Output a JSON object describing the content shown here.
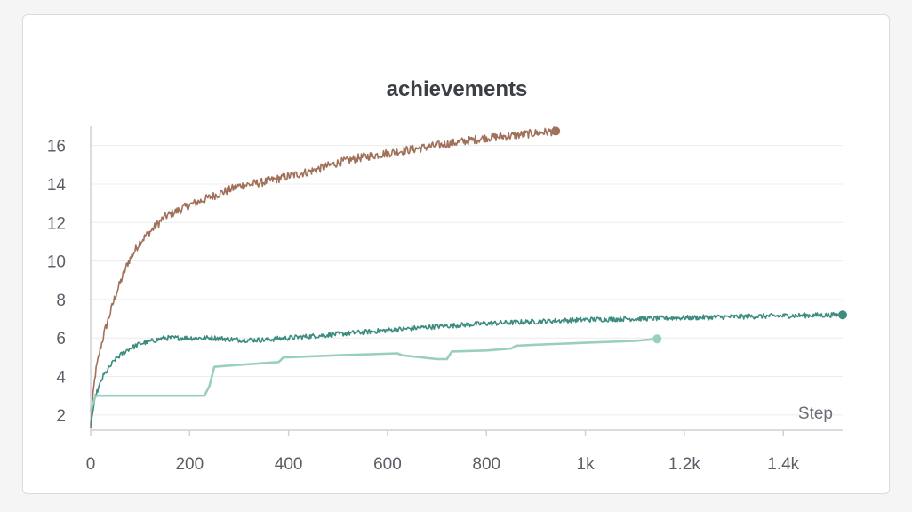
{
  "chart_data": {
    "type": "line",
    "title": "achievements",
    "xlabel": "Step",
    "ylabel": "",
    "xlim": [
      0,
      1520
    ],
    "ylim": [
      1.3,
      17.0
    ],
    "grid": true,
    "x_ticks": [
      {
        "value": 0,
        "label": "0"
      },
      {
        "value": 200,
        "label": "200"
      },
      {
        "value": 400,
        "label": "400"
      },
      {
        "value": 600,
        "label": "600"
      },
      {
        "value": 800,
        "label": "800"
      },
      {
        "value": 1000,
        "label": "1k"
      },
      {
        "value": 1200,
        "label": "1.2k"
      },
      {
        "value": 1400,
        "label": "1.4k"
      }
    ],
    "y_ticks": [
      {
        "value": 2,
        "label": "2"
      },
      {
        "value": 4,
        "label": "4"
      },
      {
        "value": 6,
        "label": "6"
      },
      {
        "value": 8,
        "label": "8"
      },
      {
        "value": 10,
        "label": "10"
      },
      {
        "value": 12,
        "label": "12"
      },
      {
        "value": 14,
        "label": "14"
      },
      {
        "value": 16,
        "label": "16"
      }
    ],
    "series": [
      {
        "color": "#a0705a",
        "noise": 0.22,
        "x": [
          0,
          5,
          10,
          20,
          30,
          50,
          75,
          100,
          150,
          200,
          250,
          300,
          350,
          400,
          450,
          500,
          550,
          600,
          650,
          700,
          750,
          800,
          850,
          900,
          940
        ],
        "y": [
          1.3,
          3.2,
          4.2,
          5.5,
          6.5,
          8.2,
          9.9,
          11.0,
          12.3,
          12.9,
          13.4,
          13.9,
          14.1,
          14.4,
          14.7,
          15.1,
          15.4,
          15.6,
          15.8,
          16.0,
          16.2,
          16.4,
          16.5,
          16.65,
          16.75
        ]
      },
      {
        "color": "#3d8c80",
        "noise": 0.13,
        "x": [
          0,
          10,
          25,
          50,
          75,
          100,
          150,
          200,
          250,
          300,
          350,
          400,
          450,
          500,
          600,
          700,
          800,
          900,
          1000,
          1100,
          1200,
          1300,
          1400,
          1520
        ],
        "y": [
          1.5,
          3.0,
          4.0,
          4.9,
          5.4,
          5.7,
          6.0,
          6.0,
          6.0,
          5.9,
          5.9,
          6.0,
          6.1,
          6.2,
          6.4,
          6.6,
          6.75,
          6.85,
          6.95,
          7.0,
          7.05,
          7.1,
          7.15,
          7.2
        ]
      },
      {
        "color": "#98cfc0",
        "noise": 0.0,
        "x": [
          0,
          10,
          30,
          100,
          200,
          230,
          240,
          250,
          300,
          380,
          390,
          400,
          500,
          620,
          630,
          700,
          720,
          730,
          800,
          850,
          860,
          900,
          1000,
          1100,
          1145
        ],
        "y": [
          2.2,
          3.0,
          3.0,
          3.0,
          3.0,
          3.0,
          3.5,
          4.5,
          4.6,
          4.75,
          5.0,
          5.0,
          5.1,
          5.2,
          5.1,
          4.9,
          4.9,
          5.3,
          5.35,
          5.45,
          5.6,
          5.65,
          5.75,
          5.85,
          5.95
        ]
      }
    ]
  }
}
